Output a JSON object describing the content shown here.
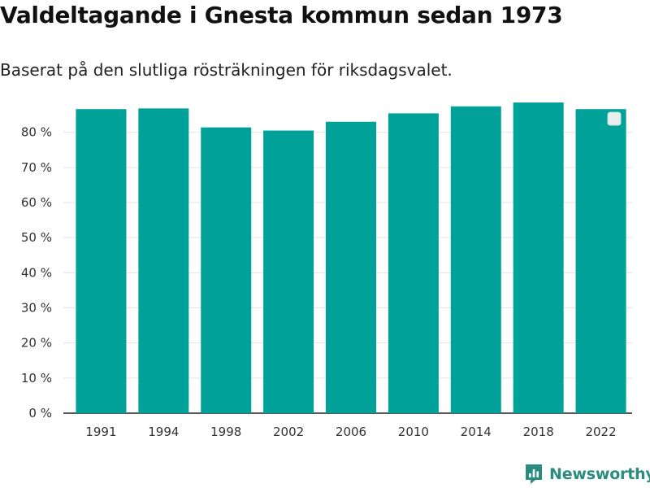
{
  "title": "Valdeltagande i Gnesta kommun sedan 1973",
  "subtitle": "Baserat på den slutliga rösträkningen för riksdagsvalet.",
  "brand": {
    "name": "Newsworthy",
    "color": "#2a8b7f"
  },
  "chart_data": {
    "type": "bar",
    "categories": [
      "1991",
      "1994",
      "1998",
      "2002",
      "2006",
      "2010",
      "2014",
      "2018",
      "2022"
    ],
    "series": [
      {
        "values": [
          86.6,
          86.8,
          81.4,
          80.5,
          83.0,
          85.4,
          87.4,
          88.5,
          86.6
        ],
        "color": "#00a199"
      }
    ],
    "y_ticks": [
      0,
      10,
      20,
      30,
      40,
      50,
      60,
      70,
      80
    ],
    "y_tick_labels": [
      "0 %",
      "10 %",
      "20 %",
      "30 %",
      "40 %",
      "50 %",
      "60 %",
      "70 %",
      "80 %"
    ],
    "ylim": [
      0,
      88.5
    ],
    "xlabel": "",
    "ylabel": "",
    "grid": true,
    "legend": "top-right"
  }
}
